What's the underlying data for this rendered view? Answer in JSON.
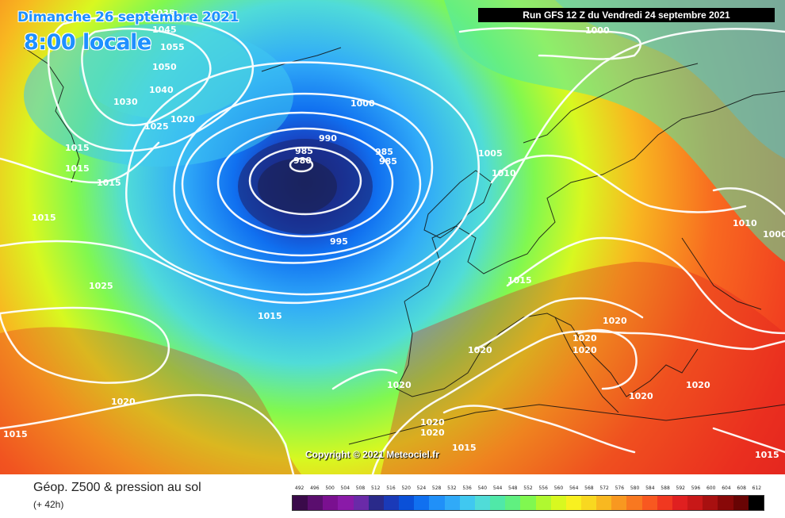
{
  "header": {
    "date": "Dimanche 26 septembre 2021",
    "time": "8:00 locale",
    "run": "Run GFS 12 Z du Vendredi 24 septembre 2021"
  },
  "copyright": "Copyright © 2021 Meteociel.fr",
  "legend": {
    "title": "Géop. Z500 & pression au sol",
    "subtitle": "(+ 42h)",
    "scale_values": [
      "492",
      "496",
      "500",
      "504",
      "508",
      "512",
      "516",
      "520",
      "524",
      "528",
      "532",
      "536",
      "540",
      "544",
      "548",
      "552",
      "556",
      "560",
      "564",
      "568",
      "572",
      "576",
      "580",
      "584",
      "588",
      "592",
      "596",
      "600",
      "604",
      "608",
      "612"
    ],
    "scale_colors": [
      "#3a0a4a",
      "#5a0e6e",
      "#7a1090",
      "#8a1aa8",
      "#6a2aa8",
      "#2a2a8a",
      "#1a3ab8",
      "#0a50d8",
      "#1070f0",
      "#2090f8",
      "#30aaf8",
      "#40c8f0",
      "#50dcd8",
      "#50e8a8",
      "#60f080",
      "#80f850",
      "#b0f830",
      "#d8f820",
      "#f8f020",
      "#f8d820",
      "#f8b820",
      "#f89820",
      "#f87820",
      "#f85820",
      "#f03820",
      "#e02020",
      "#c81818",
      "#a81010",
      "#880808",
      "#680404",
      "#000000"
    ]
  },
  "isobars": [
    "1035",
    "1045",
    "1055",
    "1050",
    "1040",
    "1030",
    "1025",
    "1020",
    "1015",
    "1015",
    "1015",
    "1015",
    "1000",
    "990",
    "985",
    "980",
    "985",
    "985",
    "995",
    "1005",
    "1010",
    "1015",
    "1010",
    "1000",
    "1000",
    "1025",
    "1015",
    "1020",
    "1015",
    "1020",
    "1020",
    "1020",
    "1020",
    "1020",
    "1020",
    "1020",
    "1015",
    "1020",
    "1020",
    "1015"
  ]
}
